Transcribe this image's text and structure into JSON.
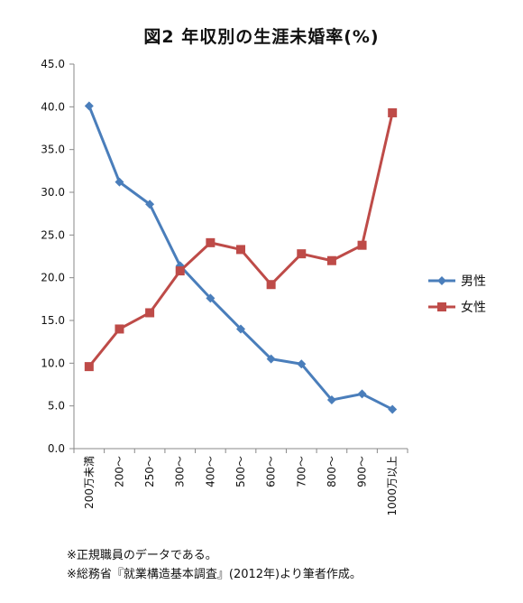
{
  "chart_data": {
    "type": "line",
    "title": "図2 年収別の生涯未婚率(%)",
    "categories": [
      "200万未満",
      "200～",
      "250～",
      "300～",
      "400～",
      "500～",
      "600～",
      "700～",
      "800～",
      "900～",
      "1000万以上"
    ],
    "ylim": [
      0,
      45
    ],
    "yticks": [
      "0.0",
      "5.0",
      "10.0",
      "15.0",
      "20.0",
      "25.0",
      "30.0",
      "35.0",
      "40.0",
      "45.0"
    ],
    "grid": false,
    "legend_position": "right",
    "series": [
      {
        "name": "男性",
        "color": "#4a7ebb",
        "marker": "diamond",
        "values": [
          40.1,
          31.2,
          28.6,
          21.4,
          17.6,
          14.0,
          10.5,
          9.9,
          5.7,
          6.4,
          4.6
        ]
      },
      {
        "name": "女性",
        "color": "#be4b48",
        "marker": "square",
        "values": [
          9.6,
          14.0,
          15.9,
          20.8,
          24.1,
          23.3,
          19.2,
          22.8,
          22.0,
          23.8,
          39.3
        ]
      }
    ]
  },
  "notes": [
    "※正規職員のデータである。",
    "※総務省『就業構造基本調査』(2012年)より筆者作成。"
  ]
}
